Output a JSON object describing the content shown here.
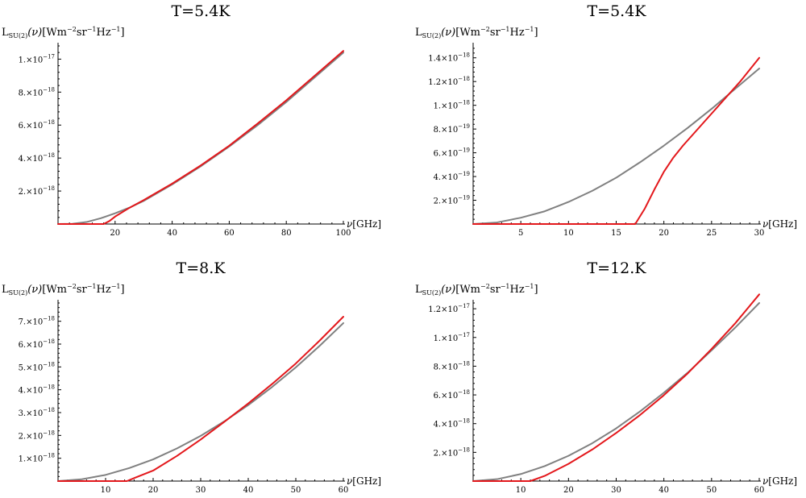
{
  "figure": {
    "ylabel_main": "L",
    "ylabel_sub": "SU(2)",
    "ylabel_var": "(ν)",
    "ylabel_unit_open": "[Wm",
    "ylabel_exp1": "−2",
    "ylabel_mid": "sr",
    "ylabel_exp2": "−1",
    "ylabel_hz": "Hz",
    "ylabel_exp3": "−1",
    "ylabel_close": "]",
    "xlabel_var": "ν",
    "xlabel_unit": "[GHz]"
  },
  "colors": {
    "su2": "#e3171b",
    "planck": "#808080",
    "axis": "#000000"
  },
  "chart_data": [
    {
      "type": "line",
      "title": "T=5.4K",
      "xlabel": "ν[GHz]",
      "ylabel": "LSU(2)(ν)[Wm−2sr−1Hz−1]",
      "xlim": [
        0,
        100
      ],
      "ylim": [
        0,
        1.08e-17
      ],
      "xticks": [
        {
          "v": 20,
          "label": "20"
        },
        {
          "v": 40,
          "label": "40"
        },
        {
          "v": 60,
          "label": "60"
        },
        {
          "v": 80,
          "label": "80"
        },
        {
          "v": 100,
          "label": "100"
        }
      ],
      "yticks": [
        {
          "v": 2e-18,
          "mant": "2.",
          "exp": "−18"
        },
        {
          "v": 4e-18,
          "mant": "4.",
          "exp": "−18"
        },
        {
          "v": 6e-18,
          "mant": "6.",
          "exp": "−18"
        },
        {
          "v": 8e-18,
          "mant": "8.",
          "exp": "−18"
        },
        {
          "v": 1e-17,
          "mant": "1.",
          "exp": "−17"
        }
      ],
      "series": [
        {
          "key": "planck",
          "x": [
            0,
            5,
            10,
            15,
            20,
            25,
            30,
            40,
            50,
            60,
            70,
            80,
            90,
            100
          ],
          "y": [
            0,
            1.3e-20,
            1.2e-19,
            3.5e-19,
            6.5e-19,
            9.9e-19,
            1.4e-18,
            2.4e-18,
            3.5e-18,
            4.7e-18,
            6e-18,
            7.4e-18,
            8.9e-18,
            1.04e-17
          ]
        },
        {
          "key": "su2",
          "x": [
            0,
            10,
            16,
            18,
            20,
            25,
            30,
            40,
            50,
            60,
            70,
            80,
            90,
            100
          ],
          "y": [
            0,
            0,
            0,
            1.8e-19,
            4.5e-19,
            9.8e-19,
            1.45e-18,
            2.45e-18,
            3.55e-18,
            4.75e-18,
            6.1e-18,
            7.5e-18,
            9e-18,
            1.05e-17
          ]
        }
      ]
    },
    {
      "type": "line",
      "title": "T=5.4K",
      "xlabel": "ν[GHz]",
      "ylabel": "LSU(2)(ν)[Wm−2sr−1Hz−1]",
      "xlim": [
        0,
        30
      ],
      "ylim": [
        0,
        1.5e-18
      ],
      "xticks": [
        {
          "v": 5,
          "label": "5"
        },
        {
          "v": 10,
          "label": "10"
        },
        {
          "v": 15,
          "label": "15"
        },
        {
          "v": 20,
          "label": "20"
        },
        {
          "v": 25,
          "label": "25"
        },
        {
          "v": 30,
          "label": "30"
        }
      ],
      "yticks": [
        {
          "v": 2e-19,
          "mant": "2.",
          "exp": "−19"
        },
        {
          "v": 4e-19,
          "mant": "4.",
          "exp": "−19"
        },
        {
          "v": 6e-19,
          "mant": "6.",
          "exp": "−19"
        },
        {
          "v": 8e-19,
          "mant": "8.",
          "exp": "−19"
        },
        {
          "v": 1e-18,
          "mant": "1.",
          "exp": "−18"
        },
        {
          "v": 1.2e-18,
          "mant": "1.2",
          "exp": "−18"
        },
        {
          "v": 1.4e-18,
          "mant": "1.4",
          "exp": "−18"
        }
      ],
      "series": [
        {
          "key": "planck",
          "x": [
            0,
            2.5,
            5,
            7.5,
            10,
            12.5,
            15,
            17.5,
            20,
            22.5,
            25,
            27.5,
            30
          ],
          "y": [
            0,
            1.3e-20,
            5.3e-20,
            1.07e-19,
            1.86e-19,
            2.8e-19,
            3.9e-19,
            5.2e-19,
            6.6e-19,
            8.1e-19,
            9.7e-19,
            1.14e-18,
            1.31e-18
          ]
        },
        {
          "key": "su2",
          "x": [
            0,
            10,
            17,
            18,
            19,
            20,
            21,
            22,
            23,
            24,
            25,
            26,
            27,
            28,
            29,
            30
          ],
          "y": [
            0,
            0,
            0,
            1.3e-19,
            2.9e-19,
            4.4e-19,
            5.6e-19,
            6.6e-19,
            7.5e-19,
            8.4e-19,
            9.3e-19,
            1.02e-18,
            1.11e-18,
            1.2e-18,
            1.3e-18,
            1.4e-18
          ]
        }
      ]
    },
    {
      "type": "line",
      "title": "T=8.K",
      "xlabel": "ν[GHz]",
      "ylabel": "LSU(2)(ν)[Wm−2sr−1Hz−1]",
      "xlim": [
        0,
        60
      ],
      "ylim": [
        0,
        7.8e-18
      ],
      "xticks": [
        {
          "v": 10,
          "label": "10"
        },
        {
          "v": 20,
          "label": "20"
        },
        {
          "v": 30,
          "label": "30"
        },
        {
          "v": 40,
          "label": "40"
        },
        {
          "v": 50,
          "label": "50"
        },
        {
          "v": 60,
          "label": "60"
        }
      ],
      "yticks": [
        {
          "v": 1e-18,
          "mant": "1.",
          "exp": "−18"
        },
        {
          "v": 2e-18,
          "mant": "2.",
          "exp": "−18"
        },
        {
          "v": 3e-18,
          "mant": "3.",
          "exp": "−18"
        },
        {
          "v": 4e-18,
          "mant": "4.",
          "exp": "−18"
        },
        {
          "v": 5e-18,
          "mant": "5.",
          "exp": "−18"
        },
        {
          "v": 6e-18,
          "mant": "6.",
          "exp": "−18"
        },
        {
          "v": 7e-18,
          "mant": "7.",
          "exp": "−18"
        }
      ],
      "series": [
        {
          "key": "planck",
          "x": [
            0,
            5,
            10,
            15,
            20,
            25,
            30,
            35,
            40,
            45,
            50,
            55,
            60
          ],
          "y": [
            0,
            8e-20,
            2.7e-19,
            5.7e-19,
            9.5e-19,
            1.43e-18,
            1.98e-18,
            2.62e-18,
            3.33e-18,
            4.12e-18,
            4.98e-18,
            5.92e-18,
            6.92e-18
          ]
        },
        {
          "key": "su2",
          "x": [
            0,
            10,
            14.5,
            16,
            20,
            25,
            30,
            35,
            40,
            45,
            50,
            55,
            60
          ],
          "y": [
            0,
            0,
            0,
            1.3e-19,
            4.6e-19,
            1.1e-18,
            1.82e-18,
            2.6e-18,
            3.4e-18,
            4.25e-18,
            5.15e-18,
            6.15e-18,
            7.2e-18
          ]
        }
      ]
    },
    {
      "type": "line",
      "title": "T=12.K",
      "xlabel": "ν[GHz]",
      "ylabel": "LSU(2)(ν)[Wm−2sr−1Hz−1]",
      "xlim": [
        0,
        60
      ],
      "ylim": [
        0,
        1.24e-17
      ],
      "xticks": [
        {
          "v": 10,
          "label": "10"
        },
        {
          "v": 20,
          "label": "20"
        },
        {
          "v": 30,
          "label": "30"
        },
        {
          "v": 40,
          "label": "40"
        },
        {
          "v": 50,
          "label": "50"
        },
        {
          "v": 60,
          "label": "60"
        }
      ],
      "yticks": [
        {
          "v": 2e-18,
          "mant": "2.",
          "exp": "−18"
        },
        {
          "v": 4e-18,
          "mant": "4.",
          "exp": "−18"
        },
        {
          "v": 6e-18,
          "mant": "6.",
          "exp": "−18"
        },
        {
          "v": 8e-18,
          "mant": "8.",
          "exp": "−18"
        },
        {
          "v": 1e-17,
          "mant": "1.",
          "exp": "−17"
        },
        {
          "v": 1.2e-17,
          "mant": "1.2",
          "exp": "−17"
        }
      ],
      "series": [
        {
          "key": "planck",
          "x": [
            0,
            5,
            10,
            15,
            20,
            25,
            30,
            35,
            40,
            45,
            50,
            55,
            60
          ],
          "y": [
            0,
            1.3e-19,
            4.9e-19,
            1.04e-18,
            1.76e-18,
            2.64e-18,
            3.67e-18,
            4.85e-18,
            6.15e-18,
            7.55e-18,
            9.1e-18,
            1.07e-17,
            1.24e-17
          ]
        },
        {
          "key": "su2",
          "x": [
            0,
            10,
            12,
            15,
            20,
            25,
            30,
            35,
            40,
            45,
            50,
            55,
            60
          ],
          "y": [
            0,
            0,
            0,
            3.6e-19,
            1.2e-18,
            2.2e-18,
            3.35e-18,
            4.6e-18,
            5.98e-18,
            7.5e-18,
            9.2e-18,
            1.1e-17,
            1.3e-17
          ]
        }
      ]
    }
  ]
}
